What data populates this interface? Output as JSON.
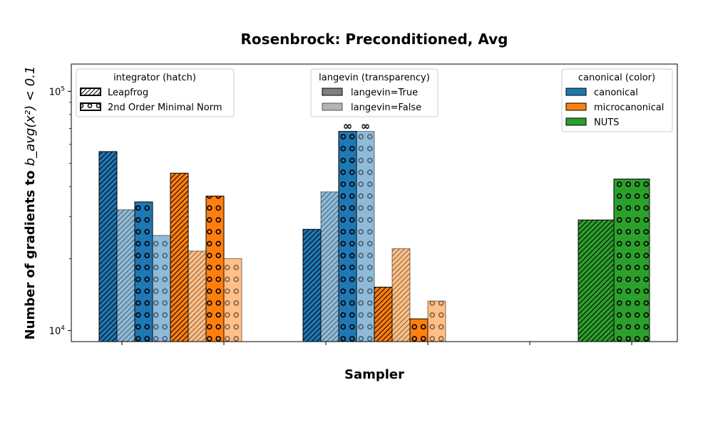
{
  "chart_data": {
    "type": "bar",
    "title": "Rosenbrock: Preconditioned, Avg",
    "xlabel": "Sampler",
    "ylabel_text": "Number of gradients to ",
    "ylabel_math": "b_avg(x²) < 0.1",
    "yscale": "log",
    "ylim": [
      9000,
      130000
    ],
    "yticks": [
      {
        "value": 10000,
        "base": "10",
        "exp": "4"
      },
      {
        "value": 100000,
        "base": "10",
        "exp": "5"
      }
    ],
    "categories": [
      "",
      "",
      "",
      "",
      "",
      ""
    ],
    "bars": [
      {
        "group": 0,
        "slot": 0,
        "color": "canonical",
        "hatch": "leapfrog",
        "langevin": true,
        "value": 56000
      },
      {
        "group": 0,
        "slot": 1,
        "color": "canonical",
        "hatch": "leapfrog",
        "langevin": false,
        "value": 32000
      },
      {
        "group": 0,
        "slot": 2,
        "color": "canonical",
        "hatch": "minimal_norm",
        "langevin": true,
        "value": 34500
      },
      {
        "group": 0,
        "slot": 3,
        "color": "canonical",
        "hatch": "minimal_norm",
        "langevin": false,
        "value": 25000
      },
      {
        "group": 0,
        "slot": 4,
        "color": "microcanonical",
        "hatch": "leapfrog",
        "langevin": true,
        "value": 45500
      },
      {
        "group": 0,
        "slot": 5,
        "color": "microcanonical",
        "hatch": "leapfrog",
        "langevin": false,
        "value": 21500
      },
      {
        "group": 0,
        "slot": 6,
        "color": "microcanonical",
        "hatch": "minimal_norm",
        "langevin": true,
        "value": 36500
      },
      {
        "group": 0,
        "slot": 7,
        "color": "microcanonical",
        "hatch": "minimal_norm",
        "langevin": false,
        "value": 20000
      },
      {
        "group": 1,
        "slot": 0,
        "color": "canonical",
        "hatch": "leapfrog",
        "langevin": true,
        "value": 26500
      },
      {
        "group": 1,
        "slot": 1,
        "color": "canonical",
        "hatch": "leapfrog",
        "langevin": false,
        "value": 38000
      },
      {
        "group": 1,
        "slot": 2,
        "color": "canonical",
        "hatch": "minimal_norm",
        "langevin": true,
        "value": 68000,
        "infinite": true
      },
      {
        "group": 1,
        "slot": 3,
        "color": "canonical",
        "hatch": "minimal_norm",
        "langevin": false,
        "value": 68000,
        "infinite": true
      },
      {
        "group": 1,
        "slot": 4,
        "color": "microcanonical",
        "hatch": "leapfrog",
        "langevin": true,
        "value": 15200
      },
      {
        "group": 1,
        "slot": 5,
        "color": "microcanonical",
        "hatch": "leapfrog",
        "langevin": false,
        "value": 22000
      },
      {
        "group": 1,
        "slot": 6,
        "color": "microcanonical",
        "hatch": "minimal_norm",
        "langevin": true,
        "value": 11200
      },
      {
        "group": 1,
        "slot": 7,
        "color": "microcanonical",
        "hatch": "minimal_norm",
        "langevin": false,
        "value": 13300
      },
      {
        "group": 2,
        "slot": 0,
        "color": "NUTS",
        "hatch": "leapfrog",
        "langevin": true,
        "value": 29000
      },
      {
        "group": 2,
        "slot": 1,
        "color": "NUTS",
        "hatch": "minimal_norm",
        "langevin": true,
        "value": 43000
      }
    ],
    "infinity_symbol": "∞",
    "colors": {
      "canonical": "#1f77b4",
      "microcanonical": "#ff7f0e",
      "NUTS": "#2ca02c"
    },
    "legends": {
      "integrator": {
        "title": "integrator (hatch)",
        "placement": "top-left",
        "entries": [
          {
            "label": "Leapfrog",
            "hatch": "leapfrog"
          },
          {
            "label": "2nd Order Minimal Norm",
            "hatch": "minimal_norm"
          }
        ]
      },
      "langevin": {
        "title": "langevin (transparency)",
        "placement": "top-center",
        "entries": [
          {
            "label": "langevin=True",
            "color": "#808080"
          },
          {
            "label": "langevin=False",
            "color": "#b3b3b3"
          }
        ]
      },
      "canonical": {
        "title": "canonical (color)",
        "placement": "top-right",
        "entries": [
          {
            "label": "canonical",
            "color": "#1f77b4"
          },
          {
            "label": "microcanonical",
            "color": "#ff7f0e"
          },
          {
            "label": "NUTS",
            "color": "#2ca02c"
          }
        ]
      }
    }
  }
}
